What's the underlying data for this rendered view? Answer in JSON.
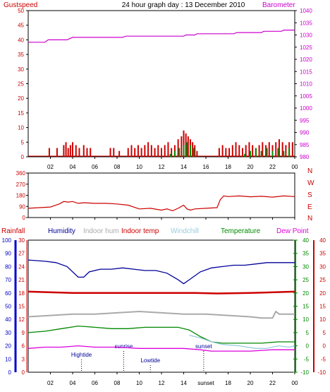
{
  "title": "24 hour graph day : 13 December 2010",
  "colors": {
    "red": "#cc0000",
    "magenta": "#cc00cc",
    "green": "#008800",
    "navy": "#000099",
    "gray": "#aaaaaa",
    "lightblue": "#99ccdd",
    "pink": "#dd00dd",
    "blue": "#0000cc",
    "axis": "#000000"
  },
  "chart_data": [
    {
      "type": "line",
      "name": "wind-baro",
      "left_label": "Gustspeed",
      "right_label": "Barometer",
      "ylim": [
        0,
        50
      ],
      "yticks": [
        0,
        5,
        10,
        15,
        20,
        25,
        30,
        35,
        40,
        45,
        50
      ],
      "ylim_right": [
        980,
        1040
      ],
      "yticks_right": [
        980,
        985,
        990,
        995,
        1000,
        1005,
        1010,
        1015,
        1020,
        1025,
        1030,
        1035,
        1040
      ],
      "x_labels": [
        "02",
        "04",
        "06",
        "08",
        "10",
        "12",
        "14",
        "16",
        "18",
        "20",
        "22",
        "00"
      ],
      "series": [
        {
          "name": "Barometer",
          "axis": "right",
          "x": [
            0,
            1.5,
            1.8,
            3.5,
            4.0,
            8.5,
            8.8,
            14.0,
            14.2,
            15.0,
            15.2,
            18.5,
            18.8,
            21.0,
            21.2,
            22.8,
            23.0,
            24.0
          ],
          "y": [
            1027,
            1027,
            1028,
            1028,
            1029,
            1029,
            1029.5,
            1029.5,
            1030,
            1030,
            1030.5,
            1030.5,
            1031,
            1031,
            1031.5,
            1031.5,
            1032,
            1032
          ]
        },
        {
          "name": "Gustspeed",
          "axis": "left",
          "type": "bars",
          "x": [
            1.9,
            2.6,
            3.2,
            3.4,
            3.6,
            3.8,
            4.0,
            4.3,
            4.6,
            5.0,
            5.3,
            5.6,
            7.4,
            7.7,
            8.2,
            9.0,
            9.3,
            9.6,
            9.9,
            10.2,
            10.5,
            10.8,
            11.1,
            11.4,
            11.7,
            12.0,
            12.3,
            12.6,
            12.9,
            13.2,
            13.5,
            13.8,
            14.0,
            14.2,
            14.4,
            14.6,
            14.8,
            15.0,
            15.2,
            17.2,
            17.5,
            17.8,
            18.1,
            18.4,
            18.7,
            19.0,
            19.3,
            19.6,
            19.9,
            20.2,
            20.5,
            20.8,
            21.1,
            21.4,
            21.7,
            22.0,
            22.3,
            22.6,
            22.9,
            23.2,
            23.5,
            23.8
          ],
          "y": [
            3,
            3,
            4,
            5,
            3,
            4,
            5,
            4,
            3,
            4,
            3,
            3,
            3,
            3,
            2,
            3,
            4,
            3,
            4,
            3,
            4,
            5,
            4,
            3,
            4,
            3,
            4,
            5,
            3,
            4,
            6,
            7,
            9,
            8,
            7,
            6,
            5,
            4,
            2,
            3,
            4,
            3,
            3,
            4,
            5,
            4,
            3,
            4,
            5,
            4,
            3,
            4,
            5,
            4,
            5,
            4,
            5,
            6,
            5,
            4,
            5,
            5
          ]
        },
        {
          "name": "Windspeed",
          "axis": "left",
          "type": "bars",
          "x": [
            12.8,
            13.2,
            13.6,
            14.0,
            14.3,
            14.6,
            14.9,
            19.5,
            20.0,
            20.5,
            21.0,
            21.5,
            22.0,
            22.5,
            23.0,
            23.5
          ],
          "y": [
            1,
            2,
            3,
            4,
            5,
            4,
            3,
            1,
            2,
            3,
            2,
            3,
            2,
            3,
            2,
            3
          ]
        }
      ]
    },
    {
      "type": "line",
      "name": "wind-direction",
      "ylim": [
        0,
        360
      ],
      "yticks": [
        0,
        90,
        180,
        270,
        360
      ],
      "compass": [
        "N",
        "W",
        "S",
        "E",
        "N"
      ],
      "series": [
        {
          "name": "Wind direction",
          "x": [
            0,
            1.0,
            2.0,
            2.3,
            2.8,
            3.2,
            3.6,
            4.0,
            4.5,
            5.0,
            6.0,
            7.0,
            8.0,
            9.0,
            10.0,
            11.0,
            12.0,
            12.5,
            13.0,
            13.5,
            14.0,
            14.3,
            14.6,
            15.0,
            16.0,
            17.0,
            17.3,
            17.6,
            18.0,
            19.0,
            20.0,
            21.0,
            22.0,
            23.0,
            24.0
          ],
          "y": [
            75,
            80,
            85,
            95,
            110,
            130,
            125,
            130,
            115,
            120,
            115,
            115,
            110,
            100,
            70,
            75,
            60,
            70,
            55,
            75,
            100,
            70,
            60,
            70,
            75,
            80,
            145,
            175,
            170,
            175,
            168,
            172,
            165,
            175,
            170
          ]
        }
      ]
    },
    {
      "type": "line",
      "name": "temperature-humidity",
      "legend": [
        "Rainfall",
        "Humidity",
        "Indoor hum",
        "Indoor temp",
        "Windchill",
        "Temperature",
        "Dew Point"
      ],
      "yticks_rain": [
        0,
        3,
        6,
        9,
        12,
        15,
        18,
        21,
        24,
        27,
        30
      ],
      "yticks_humidity": [
        0,
        10,
        20,
        30,
        40,
        50,
        60,
        70,
        80,
        90,
        100
      ],
      "ylim": [
        -10,
        40
      ],
      "yticks_temp": [
        -10,
        -5,
        0,
        5,
        10,
        15,
        20,
        25,
        30,
        35,
        40
      ],
      "x_labels": [
        "02",
        "04",
        "06",
        "08",
        "10",
        "12",
        "14",
        "sunset",
        "18",
        "20",
        "22",
        "00"
      ],
      "annotations": [
        {
          "label": "Hightide",
          "x": 4.8
        },
        {
          "label": "sunrise",
          "x": 8.6
        },
        {
          "label": "Lowtide",
          "x": 11.0
        },
        {
          "label": "sunset",
          "x": 15.8
        }
      ],
      "series": [
        {
          "name": "Humidity",
          "x": [
            0,
            1.5,
            2.5,
            3.5,
            4.5,
            5.0,
            5.5,
            6.5,
            7.5,
            8.5,
            9.5,
            10.5,
            11.5,
            12.5,
            13.5,
            14.0,
            14.5,
            15.0,
            15.5,
            16.5,
            17.5,
            18.5,
            19.5,
            20.5,
            21.5,
            24.0
          ],
          "y": [
            85,
            84,
            83,
            80,
            72,
            72,
            76,
            78,
            78,
            79,
            78,
            77,
            77,
            75,
            70,
            67,
            70,
            73,
            76,
            79,
            80,
            81,
            81,
            82,
            83,
            83
          ]
        },
        {
          "name": "Indoor temp",
          "x": [
            0,
            4.0,
            8.0,
            12.0,
            15.0,
            17.0,
            20.0,
            24.0
          ],
          "y": [
            20.5,
            20,
            20,
            20,
            20,
            19.8,
            20,
            20.5
          ]
        },
        {
          "name": "Indoor hum",
          "x": [
            0,
            2.0,
            4.0,
            6.0,
            8.0,
            10.0,
            12.0,
            14.0,
            15.0,
            16.0,
            18.0,
            20.0,
            21.0,
            22.0,
            22.3,
            22.6,
            24.0
          ],
          "y": [
            11,
            11.5,
            12,
            12,
            12.5,
            13,
            12.5,
            12,
            12,
            12,
            11.5,
            11,
            10.5,
            10.5,
            13,
            12,
            12
          ]
        },
        {
          "name": "Temperature",
          "x": [
            0,
            1.5,
            3.0,
            4.5,
            6.0,
            7.5,
            9.0,
            10.5,
            12.0,
            13.5,
            14.5,
            15.5,
            16.5,
            17.5,
            19.0,
            21.0,
            22.5,
            24.0
          ],
          "y": [
            5,
            5.5,
            6.5,
            7.5,
            7,
            6.5,
            6.5,
            7,
            7,
            7,
            6,
            3.5,
            1.5,
            1,
            1,
            1,
            1.5,
            1.5
          ]
        },
        {
          "name": "Windchill",
          "x": [
            14.5,
            15.5,
            16.5,
            17.5,
            19.0,
            20.5,
            21.5,
            22.5,
            23.5,
            24.0
          ],
          "y": [
            4,
            3,
            1.5,
            0.5,
            0,
            -1,
            -1,
            0,
            -0.5,
            0
          ]
        },
        {
          "name": "Dew Point",
          "x": [
            0,
            1.5,
            3.0,
            4.5,
            6.0,
            8.0,
            10.0,
            12.0,
            14.0,
            15.5,
            16.5,
            18.0,
            20.0,
            22.0,
            24.0
          ],
          "y": [
            -1,
            -0.5,
            -0.5,
            0,
            -0.5,
            -0.5,
            -1,
            -1,
            -1,
            -1.5,
            -2,
            -2,
            -2,
            -1.5,
            -1.5
          ]
        }
      ]
    }
  ]
}
